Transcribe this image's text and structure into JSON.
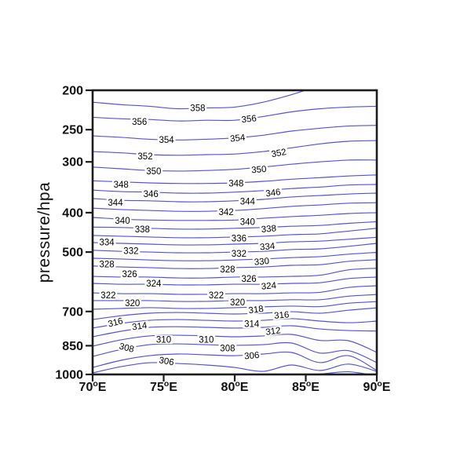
{
  "page": {
    "background": "#ffffff"
  },
  "chart_data": {
    "type": "contour",
    "title": "",
    "xlabel": "",
    "ylabel": "pressure/hpa",
    "x_axis": {
      "range": [
        70,
        90
      ],
      "ticks": [
        {
          "value": 70,
          "text": "70°E"
        },
        {
          "value": 75,
          "text": "75°E"
        },
        {
          "value": 80,
          "text": "80°E"
        },
        {
          "value": 85,
          "text": "85°E"
        },
        {
          "value": 90,
          "text": "90°E"
        }
      ]
    },
    "y_axis": {
      "range": [
        200,
        1000
      ],
      "scale": "log",
      "ticks": [
        200,
        250,
        300,
        400,
        500,
        700,
        850,
        1000
      ]
    },
    "contour_interval": 2,
    "line_color": "#5353de",
    "label_color": "#000000",
    "lons": [
      70,
      72,
      74,
      76,
      78,
      80,
      82,
      84,
      86,
      88,
      90
    ],
    "contours": [
      {
        "level": 302,
        "pressures": [
          1032,
          1032,
          1032,
          1032,
          1032,
          1032,
          1032,
          1005,
          998,
          985,
          1008
        ]
      },
      {
        "level": 304,
        "pressures": [
          991,
          957,
          936,
          940,
          948,
          961,
          983,
          948,
          978,
          943,
          983
        ]
      },
      {
        "level": 306,
        "pressures": [
          961,
          923,
          899,
          891,
          895,
          899,
          891,
          883,
          935,
          899,
          978
        ]
      },
      {
        "level": 308,
        "pressures": [
          903,
          868,
          845,
          841,
          845,
          848,
          845,
          837,
          886,
          874,
          935
        ]
      },
      {
        "level": 310,
        "pressures": [
          852,
          822,
          804,
          801,
          804,
          808,
          804,
          797,
          825,
          826,
          882
        ]
      },
      {
        "level": 312,
        "pressures": [
          808,
          783,
          766,
          763,
          766,
          769,
          766,
          759,
          773,
          780,
          782
        ]
      },
      {
        "level": 314,
        "pressures": [
          769,
          749,
          736,
          733,
          736,
          739,
          736,
          729,
          739,
          746,
          739
        ]
      },
      {
        "level": 316,
        "pressures": [
          733,
          717,
          707,
          704,
          707,
          710,
          707,
          701,
          707,
          695,
          686
        ]
      },
      {
        "level": 318,
        "pressures": [
          691,
          688,
          685,
          688,
          688,
          685,
          682,
          679,
          681,
          668,
          662
        ]
      },
      {
        "level": 320,
        "pressures": [
          658,
          658,
          658,
          661,
          661,
          658,
          658,
          655,
          655,
          642,
          636
        ]
      },
      {
        "level": 322,
        "pressures": [
          630,
          633,
          633,
          635,
          635,
          633,
          633,
          630,
          628,
          611,
          605
        ]
      },
      {
        "level": 324,
        "pressures": [
          597,
          600,
          600,
          602,
          602,
          600,
          600,
          597,
          595,
          581,
          576
        ]
      },
      {
        "level": 326,
        "pressures": [
          574,
          576,
          576,
          579,
          579,
          576,
          576,
          574,
          570,
          553,
          548
        ]
      },
      {
        "level": 328,
        "pressures": [
          541,
          544,
          546,
          549,
          549,
          546,
          544,
          539,
          537,
          527,
          522
        ]
      },
      {
        "level": 330,
        "pressures": [
          518,
          520,
          523,
          525,
          525,
          523,
          520,
          516,
          513,
          506,
          501
        ]
      },
      {
        "level": 332,
        "pressures": [
          495,
          498,
          500,
          502,
          502,
          500,
          498,
          493,
          491,
          484,
          476
        ]
      },
      {
        "level": 334,
        "pressures": [
          474,
          476,
          478,
          480,
          480,
          478,
          476,
          472,
          470,
          465,
          460
        ]
      },
      {
        "level": 336,
        "pressures": [
          455,
          457,
          459,
          461,
          461,
          459,
          457,
          453,
          451,
          444,
          437
        ]
      },
      {
        "level": 338,
        "pressures": [
          434,
          435,
          437,
          439,
          439,
          437,
          435,
          432,
          430,
          425,
          421
        ]
      },
      {
        "level": 340,
        "pressures": [
          411,
          415,
          417,
          418,
          418,
          417,
          413,
          409,
          406,
          402,
          400
        ]
      },
      {
        "level": 342,
        "pressures": [
          390,
          393,
          395,
          397,
          397,
          395,
          391,
          386,
          383,
          379,
          378
        ]
      },
      {
        "level": 344,
        "pressures": [
          369,
          373,
          374,
          376,
          376,
          374,
          371,
          366,
          363,
          360,
          358
        ]
      },
      {
        "level": 346,
        "pressures": [
          352,
          355,
          356,
          358,
          358,
          356,
          353,
          349,
          346,
          342,
          341
        ]
      },
      {
        "level": 348,
        "pressures": [
          334,
          336,
          338,
          339,
          339,
          338,
          335,
          331,
          328,
          325,
          323
        ]
      },
      {
        "level": 350,
        "pressures": [
          309,
          312,
          315,
          316,
          315,
          313,
          309,
          304,
          300,
          297,
          297
        ]
      },
      {
        "level": 352,
        "pressures": [
          283,
          285,
          288,
          289,
          288,
          287,
          283,
          277,
          271,
          267,
          266
        ]
      },
      {
        "level": 354,
        "pressures": [
          259,
          261,
          264,
          265,
          264,
          262,
          258,
          252,
          248,
          245,
          244
        ]
      },
      {
        "level": 356,
        "pressures": [
          233,
          235,
          236,
          238,
          237,
          237,
          232,
          226,
          222,
          220,
          219
        ]
      },
      {
        "level": 358,
        "pressures": [
          214,
          217,
          219,
          222,
          221,
          220,
          214,
          205,
          195,
          189,
          185
        ]
      }
    ],
    "labels": [
      {
        "text": "358",
        "lon": 77.4,
        "pressure": 221,
        "rot": 0
      },
      {
        "text": "356",
        "lon": 73.3,
        "pressure": 239,
        "rot": 0
      },
      {
        "text": "356",
        "lon": 81.0,
        "pressure": 235,
        "rot": -6
      },
      {
        "text": "354",
        "lon": 75.2,
        "pressure": 265,
        "rot": 0
      },
      {
        "text": "354",
        "lon": 80.2,
        "pressure": 262,
        "rot": -6
      },
      {
        "text": "352",
        "lon": 73.7,
        "pressure": 291,
        "rot": 0
      },
      {
        "text": "352",
        "lon": 83.1,
        "pressure": 285,
        "rot": -10
      },
      {
        "text": "350",
        "lon": 74.3,
        "pressure": 316,
        "rot": 0
      },
      {
        "text": "350",
        "lon": 81.7,
        "pressure": 313,
        "rot": -5
      },
      {
        "text": "348",
        "lon": 72.0,
        "pressure": 341,
        "rot": 0
      },
      {
        "text": "348",
        "lon": 80.1,
        "pressure": 339,
        "rot": 0
      },
      {
        "text": "346",
        "lon": 74.1,
        "pressure": 360,
        "rot": 0
      },
      {
        "text": "346",
        "lon": 82.7,
        "pressure": 357,
        "rot": -7
      },
      {
        "text": "344",
        "lon": 71.6,
        "pressure": 378,
        "rot": 0
      },
      {
        "text": "344",
        "lon": 80.9,
        "pressure": 375,
        "rot": 0
      },
      {
        "text": "342",
        "lon": 79.4,
        "pressure": 399,
        "rot": 0
      },
      {
        "text": "340",
        "lon": 72.1,
        "pressure": 419,
        "rot": 0
      },
      {
        "text": "340",
        "lon": 80.9,
        "pressure": 421,
        "rot": 0
      },
      {
        "text": "338",
        "lon": 73.5,
        "pressure": 440,
        "rot": 0
      },
      {
        "text": "338",
        "lon": 82.4,
        "pressure": 438,
        "rot": -5
      },
      {
        "text": "336",
        "lon": 80.3,
        "pressure": 463,
        "rot": 0
      },
      {
        "text": "334",
        "lon": 71.0,
        "pressure": 473,
        "rot": 0
      },
      {
        "text": "334",
        "lon": 82.3,
        "pressure": 484,
        "rot": -5
      },
      {
        "text": "332",
        "lon": 72.7,
        "pressure": 497,
        "rot": 0
      },
      {
        "text": "332",
        "lon": 80.3,
        "pressure": 504,
        "rot": 0
      },
      {
        "text": "330",
        "lon": 81.9,
        "pressure": 527,
        "rot": -5
      },
      {
        "text": "328",
        "lon": 71.0,
        "pressure": 536,
        "rot": 0
      },
      {
        "text": "328",
        "lon": 79.5,
        "pressure": 551,
        "rot": 0
      },
      {
        "text": "326",
        "lon": 72.6,
        "pressure": 566,
        "rot": 0
      },
      {
        "text": "326",
        "lon": 81.0,
        "pressure": 581,
        "rot": 0
      },
      {
        "text": "324",
        "lon": 74.3,
        "pressure": 597,
        "rot": 0
      },
      {
        "text": "324",
        "lon": 82.4,
        "pressure": 605,
        "rot": -5
      },
      {
        "text": "322",
        "lon": 71.1,
        "pressure": 639,
        "rot": 0
      },
      {
        "text": "322",
        "lon": 78.7,
        "pressure": 639,
        "rot": 0
      },
      {
        "text": "320",
        "lon": 72.8,
        "pressure": 668,
        "rot": 0
      },
      {
        "text": "320",
        "lon": 80.2,
        "pressure": 665,
        "rot": 0
      },
      {
        "text": "318",
        "lon": 81.5,
        "pressure": 692,
        "rot": -7
      },
      {
        "text": "316",
        "lon": 71.6,
        "pressure": 744,
        "rot": -14
      },
      {
        "text": "316",
        "lon": 83.3,
        "pressure": 714,
        "rot": -5
      },
      {
        "text": "314",
        "lon": 73.3,
        "pressure": 760,
        "rot": -8
      },
      {
        "text": "314",
        "lon": 81.2,
        "pressure": 751,
        "rot": 0
      },
      {
        "text": "312",
        "lon": 82.7,
        "pressure": 782,
        "rot": -8
      },
      {
        "text": "310",
        "lon": 75.0,
        "pressure": 821,
        "rot": 0
      },
      {
        "text": "310",
        "lon": 78.0,
        "pressure": 821,
        "rot": 0
      },
      {
        "text": "308",
        "lon": 72.4,
        "pressure": 859,
        "rot": 14
      },
      {
        "text": "308",
        "lon": 79.5,
        "pressure": 862,
        "rot": 0
      },
      {
        "text": "306",
        "lon": 75.2,
        "pressure": 927,
        "rot": 10
      },
      {
        "text": "306",
        "lon": 81.2,
        "pressure": 898,
        "rot": -5
      }
    ]
  }
}
